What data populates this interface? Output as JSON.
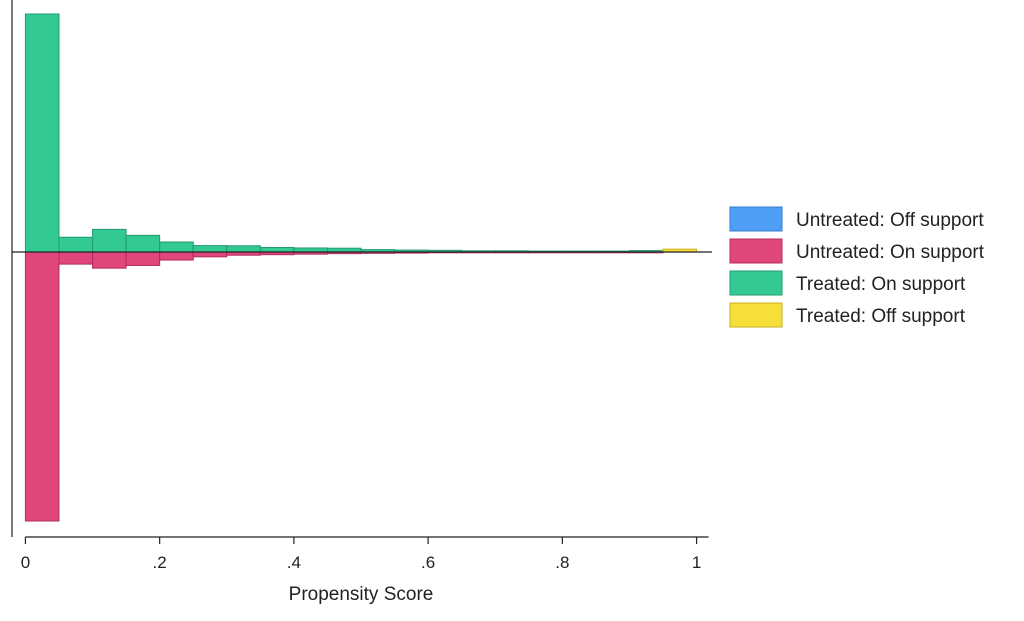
{
  "chart_data": {
    "type": "bar",
    "subtype": "mirrored-histogram",
    "title": "",
    "xlabel": "Propensity Score",
    "ylabel": "",
    "xlim": [
      -0.02,
      1.02
    ],
    "xticks": [
      0,
      0.2,
      0.4,
      0.6,
      0.8,
      1
    ],
    "xtick_labels": [
      "0",
      ".2",
      ".4",
      ".6",
      ".8",
      "1"
    ],
    "ylim": [
      -100,
      100
    ],
    "bin_width": 0.05,
    "legend_position": "right",
    "grid": false,
    "upper_direction": "treated",
    "lower_direction": "untreated",
    "series": [
      {
        "name": "Untreated: Off support",
        "color": "#4f9ef6",
        "edge": "#3a7fd0",
        "direction": "down",
        "bins": []
      },
      {
        "name": "Untreated: On support",
        "color": "#e0457c",
        "edge": "#b32d5d",
        "direction": "down",
        "bins": [
          {
            "x": 0.0,
            "value": 100.0
          },
          {
            "x": 0.05,
            "value": 4.5
          },
          {
            "x": 0.1,
            "value": 6.0
          },
          {
            "x": 0.15,
            "value": 5.0
          },
          {
            "x": 0.2,
            "value": 3.0
          },
          {
            "x": 0.25,
            "value": 1.8
          },
          {
            "x": 0.3,
            "value": 1.2
          },
          {
            "x": 0.35,
            "value": 1.0
          },
          {
            "x": 0.4,
            "value": 0.8
          },
          {
            "x": 0.45,
            "value": 0.6
          },
          {
            "x": 0.5,
            "value": 0.5
          },
          {
            "x": 0.55,
            "value": 0.4
          },
          {
            "x": 0.6,
            "value": 0.3
          },
          {
            "x": 0.65,
            "value": 0.3
          },
          {
            "x": 0.7,
            "value": 0.2
          },
          {
            "x": 0.75,
            "value": 0.2
          },
          {
            "x": 0.8,
            "value": 0.2
          },
          {
            "x": 0.85,
            "value": 0.2
          },
          {
            "x": 0.9,
            "value": 0.1
          }
        ]
      },
      {
        "name": "Treated: On support",
        "color": "#33c993",
        "edge": "#239a6f",
        "direction": "up",
        "bins": [
          {
            "x": 0.0,
            "value": 100.0
          },
          {
            "x": 0.05,
            "value": 6.2
          },
          {
            "x": 0.1,
            "value": 9.5
          },
          {
            "x": 0.15,
            "value": 7.0
          },
          {
            "x": 0.2,
            "value": 4.2
          },
          {
            "x": 0.25,
            "value": 2.7
          },
          {
            "x": 0.3,
            "value": 2.6
          },
          {
            "x": 0.35,
            "value": 1.9
          },
          {
            "x": 0.4,
            "value": 1.7
          },
          {
            "x": 0.45,
            "value": 1.6
          },
          {
            "x": 0.5,
            "value": 1.0
          },
          {
            "x": 0.55,
            "value": 0.8
          },
          {
            "x": 0.6,
            "value": 0.7
          },
          {
            "x": 0.65,
            "value": 0.5
          },
          {
            "x": 0.7,
            "value": 0.5
          },
          {
            "x": 0.75,
            "value": 0.4
          },
          {
            "x": 0.8,
            "value": 0.4
          },
          {
            "x": 0.85,
            "value": 0.4
          },
          {
            "x": 0.9,
            "value": 0.6
          }
        ]
      },
      {
        "name": "Treated: Off support",
        "color": "#f7df3a",
        "edge": "#c9b21f",
        "direction": "up",
        "bins": [
          {
            "x": 0.95,
            "value": 1.2
          }
        ]
      }
    ]
  }
}
